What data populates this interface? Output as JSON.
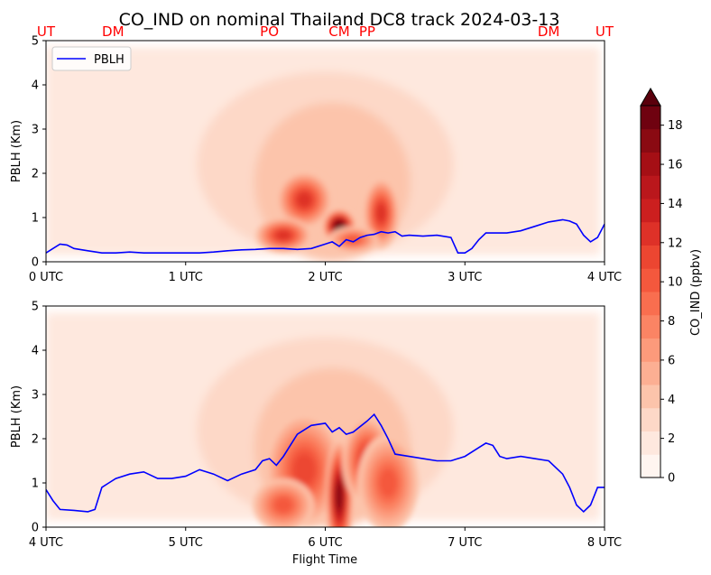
{
  "chart_data": {
    "title": "CO_IND on nominal Thailand DC8 track 2024-03-13",
    "xlabel": "Flight Time",
    "colorbar": {
      "label": "CO_IND (ppbv)",
      "ticks": [
        "0",
        "2",
        "4",
        "6",
        "8",
        "10",
        "12",
        "14",
        "16",
        "18"
      ],
      "range": [
        0,
        19
      ],
      "extend": "max",
      "colors": [
        "#fff5f0",
        "#fee8de",
        "#fdd8c7",
        "#fcc4ab",
        "#fcaf93",
        "#fc9a7b",
        "#fb8464",
        "#f96e4f",
        "#f4583d",
        "#ec4631",
        "#de3128",
        "#cc1f1f",
        "#ba171c",
        "#a50f15",
        "#8a0a12",
        "#6f0210"
      ]
    },
    "panels": [
      {
        "type": "contour",
        "ylabel": "PBLH (Km)",
        "ylim": [
          0,
          5
        ],
        "yticks": [
          "0",
          "1",
          "2",
          "3",
          "4",
          "5"
        ],
        "xlim": [
          0,
          4
        ],
        "xticks": [
          "0 UTC",
          "1 UTC",
          "2 UTC",
          "3 UTC",
          "4 UTC"
        ],
        "legend": {
          "label": "PBLH",
          "position": "upper-left",
          "color": "#0000ff"
        },
        "waypoints": [
          {
            "name": "UT",
            "x": 0.0
          },
          {
            "name": "DM",
            "x": 0.48
          },
          {
            "name": "PO",
            "x": 1.6
          },
          {
            "name": "CM",
            "x": 2.1
          },
          {
            "name": "PP",
            "x": 2.3
          },
          {
            "name": "DM",
            "x": 3.6
          },
          {
            "name": "UT",
            "x": 4.0
          }
        ],
        "series": [
          {
            "name": "PBLH",
            "x": [
              0.0,
              0.05,
              0.1,
              0.15,
              0.2,
              0.3,
              0.4,
              0.5,
              0.6,
              0.7,
              0.8,
              0.9,
              1.0,
              1.1,
              1.2,
              1.3,
              1.4,
              1.5,
              1.6,
              1.7,
              1.8,
              1.9,
              2.0,
              2.05,
              2.1,
              2.15,
              2.2,
              2.25,
              2.3,
              2.35,
              2.4,
              2.45,
              2.5,
              2.55,
              2.6,
              2.7,
              2.8,
              2.9,
              2.95,
              3.0,
              3.05,
              3.1,
              3.15,
              3.2,
              3.3,
              3.4,
              3.5,
              3.6,
              3.7,
              3.75,
              3.8,
              3.85,
              3.9,
              3.95,
              4.0
            ],
            "y": [
              0.2,
              0.3,
              0.4,
              0.38,
              0.3,
              0.25,
              0.2,
              0.2,
              0.22,
              0.2,
              0.2,
              0.2,
              0.2,
              0.2,
              0.22,
              0.25,
              0.27,
              0.28,
              0.3,
              0.3,
              0.28,
              0.3,
              0.4,
              0.45,
              0.35,
              0.5,
              0.45,
              0.55,
              0.6,
              0.62,
              0.68,
              0.65,
              0.68,
              0.58,
              0.6,
              0.58,
              0.6,
              0.55,
              0.2,
              0.2,
              0.3,
              0.5,
              0.65,
              0.65,
              0.65,
              0.7,
              0.8,
              0.9,
              0.95,
              0.92,
              0.85,
              0.6,
              0.45,
              0.55,
              0.85
            ]
          }
        ],
        "plumes": [
          {
            "x": 1.85,
            "y": 1.4,
            "w": 0.2,
            "h": 0.65,
            "peak": 13
          },
          {
            "x": 1.7,
            "y": 0.6,
            "w": 0.2,
            "h": 0.4,
            "peak": 12
          },
          {
            "x": 2.1,
            "y": 0.8,
            "w": 0.12,
            "h": 0.4,
            "peak": 19
          },
          {
            "x": 2.4,
            "y": 1.1,
            "w": 0.13,
            "h": 0.8,
            "peak": 13
          },
          {
            "x": 2.2,
            "y": 0.5,
            "w": 0.18,
            "h": 0.3,
            "peak": 10
          }
        ]
      },
      {
        "type": "contour",
        "ylabel": "PBLH (Km)",
        "ylim": [
          0,
          5
        ],
        "yticks": [
          "0",
          "1",
          "2",
          "3",
          "4",
          "5"
        ],
        "xlim": [
          4,
          8
        ],
        "xticks": [
          "4 UTC",
          "5 UTC",
          "6 UTC",
          "7 UTC",
          "8 UTC"
        ],
        "series": [
          {
            "name": "PBLH",
            "x": [
              4.0,
              4.05,
              4.1,
              4.2,
              4.3,
              4.35,
              4.4,
              4.45,
              4.5,
              4.6,
              4.7,
              4.8,
              4.9,
              5.0,
              5.1,
              5.2,
              5.3,
              5.4,
              5.5,
              5.55,
              5.6,
              5.65,
              5.7,
              5.8,
              5.9,
              6.0,
              6.05,
              6.1,
              6.15,
              6.2,
              6.3,
              6.35,
              6.4,
              6.45,
              6.5,
              6.6,
              6.7,
              6.8,
              6.9,
              7.0,
              7.1,
              7.15,
              7.2,
              7.25,
              7.3,
              7.4,
              7.5,
              7.6,
              7.7,
              7.75,
              7.8,
              7.85,
              7.9,
              7.95,
              8.0
            ],
            "y": [
              0.85,
              0.6,
              0.4,
              0.38,
              0.35,
              0.4,
              0.9,
              1.0,
              1.1,
              1.2,
              1.25,
              1.1,
              1.1,
              1.15,
              1.3,
              1.2,
              1.05,
              1.2,
              1.3,
              1.5,
              1.55,
              1.4,
              1.6,
              2.1,
              2.3,
              2.35,
              2.15,
              2.25,
              2.1,
              2.15,
              2.4,
              2.55,
              2.3,
              2.0,
              1.65,
              1.6,
              1.55,
              1.5,
              1.5,
              1.6,
              1.8,
              1.9,
              1.85,
              1.6,
              1.55,
              1.6,
              1.55,
              1.5,
              1.2,
              0.9,
              0.5,
              0.35,
              0.5,
              0.9,
              0.9
            ]
          }
        ],
        "plumes": [
          {
            "x": 5.85,
            "y": 1.3,
            "w": 0.28,
            "h": 1.3,
            "peak": 11
          },
          {
            "x": 5.7,
            "y": 0.5,
            "w": 0.22,
            "h": 0.6,
            "peak": 10
          },
          {
            "x": 6.1,
            "y": 0.7,
            "w": 0.1,
            "h": 1.3,
            "peak": 17
          },
          {
            "x": 6.3,
            "y": 1.5,
            "w": 0.18,
            "h": 1.0,
            "peak": 12
          },
          {
            "x": 6.45,
            "y": 1.0,
            "w": 0.22,
            "h": 1.1,
            "peak": 10
          }
        ]
      }
    ]
  }
}
